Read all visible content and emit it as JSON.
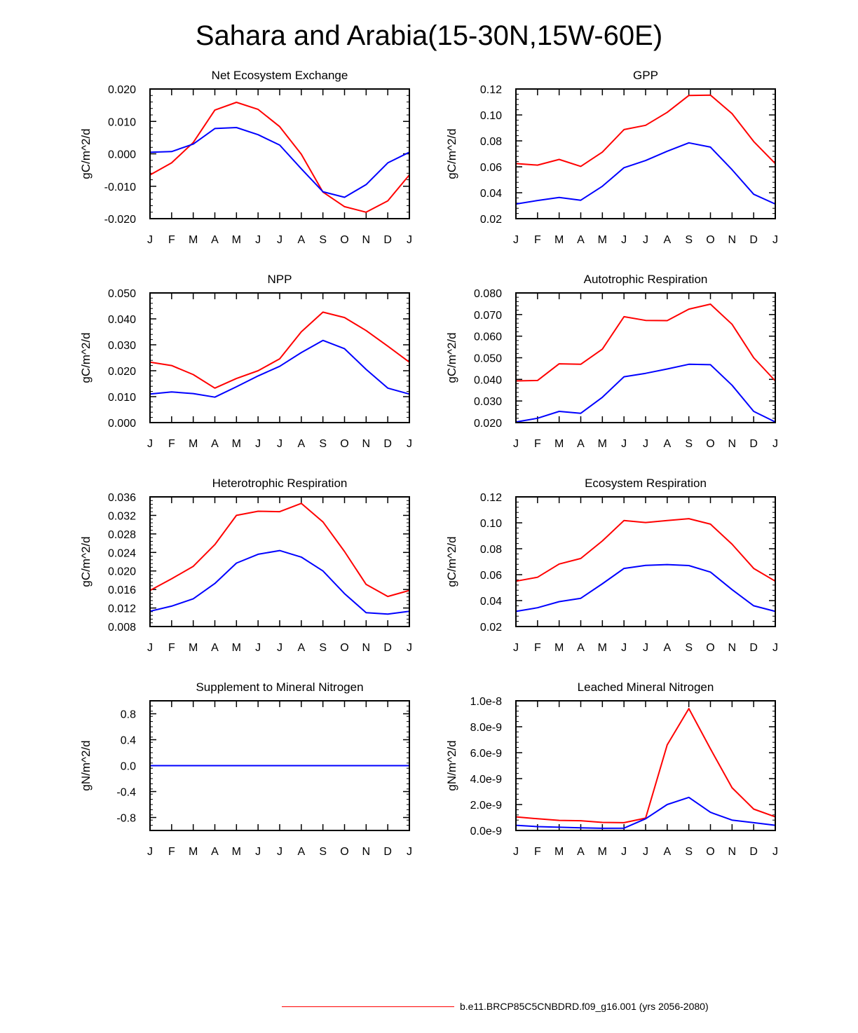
{
  "title": "Sahara and Arabia(15-30N,15W-60E)",
  "colors": {
    "series_a": "#ff0000",
    "series_b": "#0000ff"
  },
  "legend": {
    "label": "b.e11.BRCP85C5CNBDRD.f09_g16.001 (yrs 2056-2080)"
  },
  "chart_data": [
    {
      "type": "line",
      "title": "Net Ecosystem Exchange",
      "ylabel": "gC/m^2/d",
      "xlabel": "",
      "categories": [
        "J",
        "F",
        "M",
        "A",
        "M",
        "J",
        "J",
        "A",
        "S",
        "O",
        "N",
        "D",
        "J"
      ],
      "ylim": [
        -0.02,
        0.02
      ],
      "yticks": [
        {
          "value": 0.02,
          "label": "0.020"
        },
        {
          "value": 0.01,
          "label": "0.010"
        },
        {
          "value": 0.0,
          "label": "0.000"
        },
        {
          "value": -0.01,
          "label": "-0.010"
        },
        {
          "value": -0.02,
          "label": "-0.020"
        }
      ],
      "series": [
        {
          "color": "#ff0000",
          "values": [
            -0.0065,
            -0.0028,
            0.0035,
            0.0135,
            0.0159,
            0.0137,
            0.0084,
            -0.0001,
            -0.0118,
            -0.0163,
            -0.018,
            -0.0145,
            -0.0065
          ]
        },
        {
          "color": "#0000ff",
          "values": [
            0.0005,
            0.0007,
            0.003,
            0.0078,
            0.0081,
            0.0059,
            0.0027,
            -0.0046,
            -0.0117,
            -0.0134,
            -0.0095,
            -0.0028,
            0.0005
          ]
        }
      ]
    },
    {
      "type": "line",
      "title": "GPP",
      "ylabel": "gC/m^2/d",
      "xlabel": "",
      "categories": [
        "J",
        "F",
        "M",
        "A",
        "M",
        "J",
        "J",
        "A",
        "S",
        "O",
        "N",
        "D",
        "J"
      ],
      "ylim": [
        0.02,
        0.12
      ],
      "yticks": [
        {
          "value": 0.12,
          "label": "0.12"
        },
        {
          "value": 0.1,
          "label": "0.10"
        },
        {
          "value": 0.08,
          "label": "0.08"
        },
        {
          "value": 0.06,
          "label": "0.06"
        },
        {
          "value": 0.04,
          "label": "0.04"
        },
        {
          "value": 0.02,
          "label": "0.02"
        }
      ],
      "series": [
        {
          "color": "#ff0000",
          "values": [
            0.0625,
            0.0613,
            0.0657,
            0.0603,
            0.0713,
            0.0887,
            0.092,
            0.102,
            0.115,
            0.1153,
            0.101,
            0.0795,
            0.0625
          ]
        },
        {
          "color": "#0000ff",
          "values": [
            0.0313,
            0.034,
            0.0363,
            0.0342,
            0.045,
            0.0593,
            0.0648,
            0.072,
            0.0785,
            0.0752,
            0.0578,
            0.0388,
            0.0313
          ]
        }
      ]
    },
    {
      "type": "line",
      "title": "NPP",
      "ylabel": "gC/m^2/d",
      "xlabel": "",
      "categories": [
        "J",
        "F",
        "M",
        "A",
        "M",
        "J",
        "J",
        "A",
        "S",
        "O",
        "N",
        "D",
        "J"
      ],
      "ylim": [
        0.0,
        0.05
      ],
      "yticks": [
        {
          "value": 0.05,
          "label": "0.050"
        },
        {
          "value": 0.04,
          "label": "0.040"
        },
        {
          "value": 0.03,
          "label": "0.030"
        },
        {
          "value": 0.02,
          "label": "0.020"
        },
        {
          "value": 0.01,
          "label": "0.010"
        },
        {
          "value": 0.0,
          "label": "0.000"
        }
      ],
      "series": [
        {
          "color": "#ff0000",
          "values": [
            0.0233,
            0.022,
            0.0185,
            0.0133,
            0.017,
            0.02,
            0.0246,
            0.035,
            0.0426,
            0.0405,
            0.0355,
            0.0295,
            0.0233
          ]
        },
        {
          "color": "#0000ff",
          "values": [
            0.011,
            0.0118,
            0.0112,
            0.0098,
            0.0138,
            0.018,
            0.0217,
            0.027,
            0.0317,
            0.0285,
            0.0205,
            0.0133,
            0.011
          ]
        }
      ]
    },
    {
      "type": "line",
      "title": "Autotrophic Respiration",
      "ylabel": "gC/m^2/d",
      "xlabel": "",
      "categories": [
        "J",
        "F",
        "M",
        "A",
        "M",
        "J",
        "J",
        "A",
        "S",
        "O",
        "N",
        "D",
        "J"
      ],
      "ylim": [
        0.02,
        0.08
      ],
      "yticks": [
        {
          "value": 0.08,
          "label": "0.080"
        },
        {
          "value": 0.07,
          "label": "0.070"
        },
        {
          "value": 0.06,
          "label": "0.060"
        },
        {
          "value": 0.05,
          "label": "0.050"
        },
        {
          "value": 0.04,
          "label": "0.040"
        },
        {
          "value": 0.03,
          "label": "0.030"
        },
        {
          "value": 0.02,
          "label": "0.020"
        }
      ],
      "series": [
        {
          "color": "#ff0000",
          "values": [
            0.0393,
            0.0395,
            0.0472,
            0.047,
            0.054,
            0.069,
            0.0673,
            0.0672,
            0.0725,
            0.0748,
            0.0655,
            0.05,
            0.0393
          ]
        },
        {
          "color": "#0000ff",
          "values": [
            0.0203,
            0.022,
            0.0252,
            0.0243,
            0.0317,
            0.0412,
            0.0428,
            0.0448,
            0.047,
            0.0468,
            0.0373,
            0.0252,
            0.0203
          ]
        }
      ]
    },
    {
      "type": "line",
      "title": "Heterotrophic Respiration",
      "ylabel": "gC/m^2/d",
      "xlabel": "",
      "categories": [
        "J",
        "F",
        "M",
        "A",
        "M",
        "J",
        "J",
        "A",
        "S",
        "O",
        "N",
        "D",
        "J"
      ],
      "ylim": [
        0.008,
        0.036
      ],
      "yticks": [
        {
          "value": 0.036,
          "label": "0.036"
        },
        {
          "value": 0.032,
          "label": "0.032"
        },
        {
          "value": 0.028,
          "label": "0.028"
        },
        {
          "value": 0.024,
          "label": "0.024"
        },
        {
          "value": 0.02,
          "label": "0.020"
        },
        {
          "value": 0.016,
          "label": "0.016"
        },
        {
          "value": 0.012,
          "label": "0.012"
        },
        {
          "value": 0.008,
          "label": "0.008"
        }
      ],
      "series": [
        {
          "color": "#ff0000",
          "values": [
            0.0158,
            0.0183,
            0.021,
            0.0257,
            0.032,
            0.0329,
            0.0328,
            0.0346,
            0.0306,
            0.0242,
            0.0171,
            0.0145,
            0.0158
          ]
        },
        {
          "color": "#0000ff",
          "values": [
            0.0113,
            0.0124,
            0.014,
            0.0173,
            0.0217,
            0.0236,
            0.0244,
            0.023,
            0.02,
            0.0151,
            0.011,
            0.0107,
            0.0113
          ]
        }
      ]
    },
    {
      "type": "line",
      "title": "Ecosystem Respiration",
      "ylabel": "gC/m^2/d",
      "xlabel": "",
      "categories": [
        "J",
        "F",
        "M",
        "A",
        "M",
        "J",
        "J",
        "A",
        "S",
        "O",
        "N",
        "D",
        "J"
      ],
      "ylim": [
        0.02,
        0.12
      ],
      "yticks": [
        {
          "value": 0.12,
          "label": "0.12"
        },
        {
          "value": 0.1,
          "label": "0.10"
        },
        {
          "value": 0.08,
          "label": "0.08"
        },
        {
          "value": 0.06,
          "label": "0.06"
        },
        {
          "value": 0.04,
          "label": "0.04"
        },
        {
          "value": 0.02,
          "label": "0.02"
        }
      ],
      "series": [
        {
          "color": "#ff0000",
          "values": [
            0.055,
            0.058,
            0.0682,
            0.0725,
            0.086,
            0.1018,
            0.1002,
            0.1018,
            0.1032,
            0.099,
            0.0835,
            0.0648,
            0.055
          ]
        },
        {
          "color": "#0000ff",
          "values": [
            0.0317,
            0.0345,
            0.0392,
            0.0418,
            0.053,
            0.0648,
            0.0672,
            0.0678,
            0.067,
            0.062,
            0.0485,
            0.036,
            0.0317
          ]
        }
      ]
    },
    {
      "type": "line",
      "title": "Supplement to Mineral Nitrogen",
      "ylabel": "gN/m^2/d",
      "xlabel": "",
      "categories": [
        "J",
        "F",
        "M",
        "A",
        "M",
        "J",
        "J",
        "A",
        "S",
        "O",
        "N",
        "D",
        "J"
      ],
      "ylim": [
        -1.0,
        1.0
      ],
      "yticks": [
        {
          "value": 0.8,
          "label": "0.8"
        },
        {
          "value": 0.4,
          "label": "0.4"
        },
        {
          "value": 0.0,
          "label": "0.0"
        },
        {
          "value": -0.4,
          "label": "-0.4"
        },
        {
          "value": -0.8,
          "label": "-0.8"
        }
      ],
      "series": [
        {
          "color": "#ff0000",
          "values": [
            0,
            0,
            0,
            0,
            0,
            0,
            0,
            0,
            0,
            0,
            0,
            0,
            0
          ]
        },
        {
          "color": "#0000ff",
          "values": [
            0,
            0,
            0,
            0,
            0,
            0,
            0,
            0,
            0,
            0,
            0,
            0,
            0
          ]
        }
      ]
    },
    {
      "type": "line",
      "title": "Leached Mineral Nitrogen",
      "ylabel": "gN/m^2/d",
      "xlabel": "",
      "categories": [
        "J",
        "F",
        "M",
        "A",
        "M",
        "J",
        "J",
        "A",
        "S",
        "O",
        "N",
        "D",
        "J"
      ],
      "ylim": [
        0.0,
        1e-08
      ],
      "yticks": [
        {
          "value": 1e-08,
          "label": "1.0e-8"
        },
        {
          "value": 8e-09,
          "label": "8.0e-9"
        },
        {
          "value": 6e-09,
          "label": "6.0e-9"
        },
        {
          "value": 4e-09,
          "label": "4.0e-9"
        },
        {
          "value": 2e-09,
          "label": "2.0e-9"
        },
        {
          "value": 0.0,
          "label": "0.0e-9"
        }
      ],
      "series": [
        {
          "color": "#ff0000",
          "values": [
            1.05e-09,
            9e-10,
            7.8e-10,
            7.5e-10,
            6.2e-10,
            6e-10,
            9.5e-10,
            6.6e-09,
            9.4e-09,
            6.3e-09,
            3.3e-09,
            1.65e-09,
            1.05e-09
          ]
        },
        {
          "color": "#0000ff",
          "values": [
            4e-10,
            3e-10,
            2.5e-10,
            2e-10,
            1.7e-10,
            1.8e-10,
            9e-10,
            2e-09,
            2.55e-09,
            1.4e-09,
            8e-10,
            6e-10,
            4e-10
          ]
        }
      ]
    }
  ]
}
